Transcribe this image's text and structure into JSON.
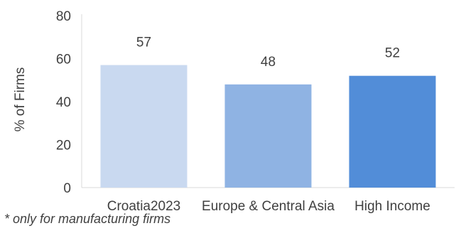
{
  "chart_data": {
    "type": "bar",
    "categories": [
      "Croatia2023",
      "Europe & Central Asia",
      "High Income"
    ],
    "values": [
      57,
      48,
      52
    ],
    "data_labels": [
      "57",
      "48",
      "52"
    ],
    "bar_colors": [
      "#c9d9f0",
      "#8fb3e3",
      "#528dd8"
    ],
    "ylabel": "% of Firms",
    "xlabel": "",
    "ylim": [
      0,
      80
    ],
    "yticks": [
      0,
      20,
      40,
      60,
      80
    ],
    "grid": false,
    "legend": "none"
  },
  "footnote": "* only for manufacturing firms"
}
